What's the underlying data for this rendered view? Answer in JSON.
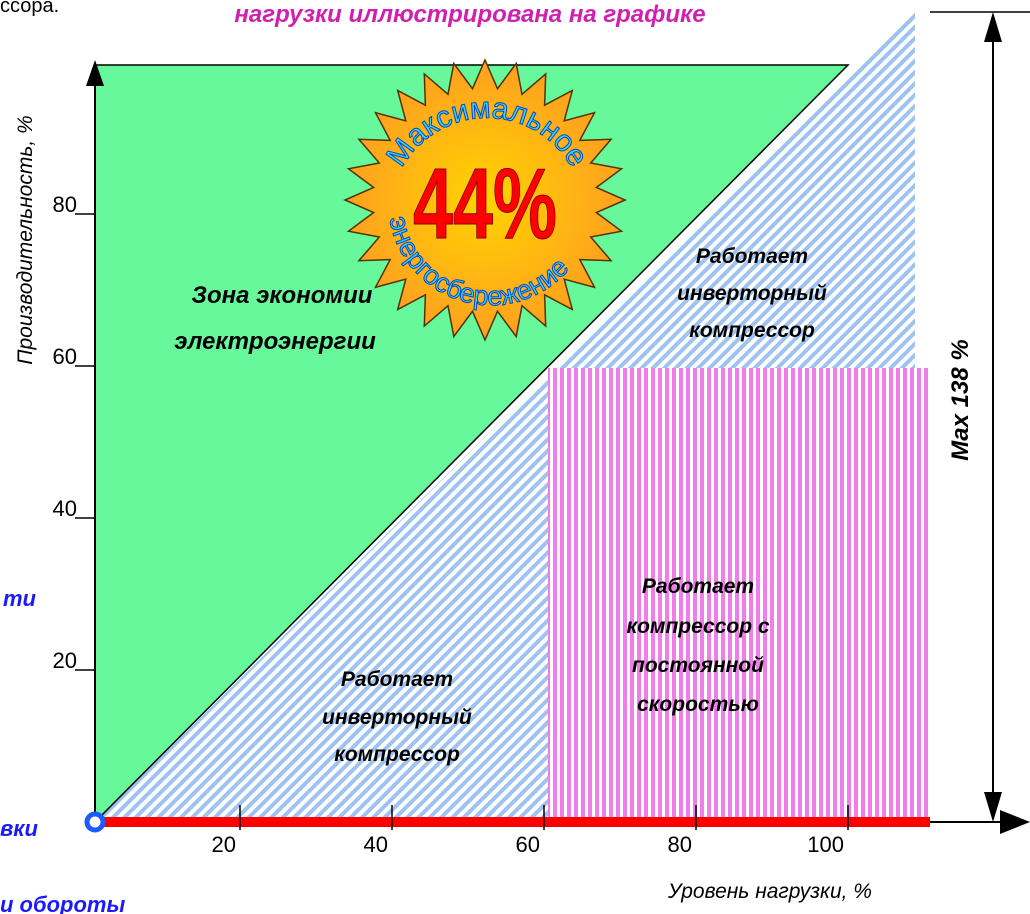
{
  "title": "нагрузки иллюстрирована на графике",
  "cut_texts": [
    "ссора.",
    "ти",
    "вки",
    "и обороты"
  ],
  "y_axis": {
    "label": "Производительность, %",
    "ticks": [
      20,
      40,
      60,
      80
    ]
  },
  "x_axis": {
    "label": "Уровень нагрузки, %",
    "ticks": [
      20,
      40,
      60,
      80,
      100
    ]
  },
  "badge": {
    "value": "44%",
    "caption": [
      "Максимальное",
      "энергосбережение"
    ]
  },
  "max_label": "Max 138 %",
  "zones": [
    {
      "label": [
        "Зона экономии",
        "электроэнергии"
      ]
    },
    {
      "label": [
        "Работает",
        "инверторный",
        "компрессор"
      ]
    },
    {
      "label": [
        "Работает",
        "инверторный",
        "компрессор"
      ]
    },
    {
      "label": [
        "Работает",
        "компрессор с",
        "постоянной",
        "скоростью"
      ]
    }
  ]
}
